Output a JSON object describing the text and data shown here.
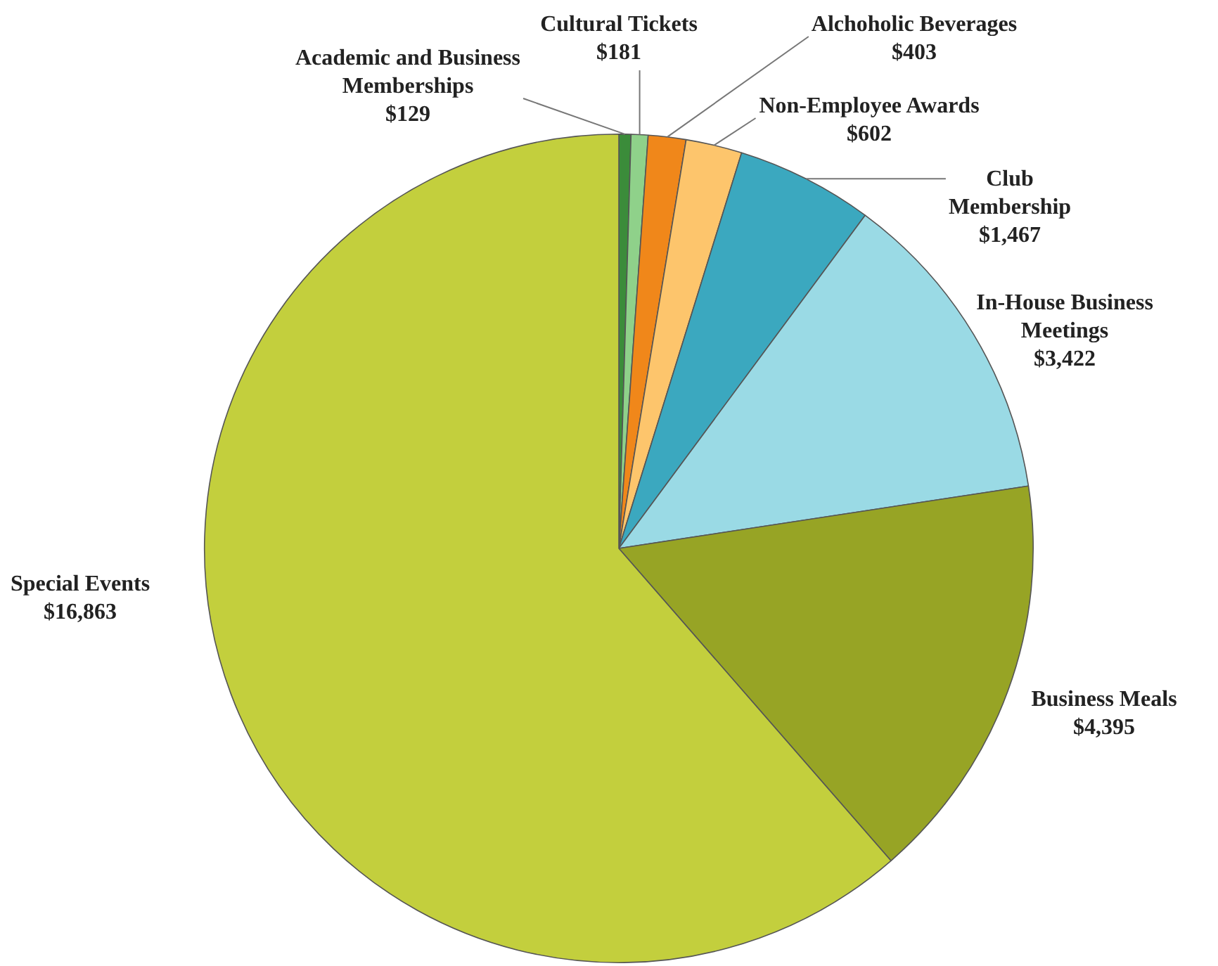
{
  "chart_data": {
    "type": "pie",
    "categories": [
      "Academic and Business Memberships",
      "Cultural Tickets",
      "Alchoholic Beverages",
      "Non-Employee Awards",
      "Club Membership",
      "In-House Business Meetings",
      "Business Meals",
      "Special Events"
    ],
    "values": [
      129,
      181,
      403,
      602,
      1467,
      3422,
      4395,
      16863
    ],
    "value_labels": [
      "$129",
      "$181",
      "$403",
      "$602",
      "$1,467",
      "$3,422",
      "$4,395",
      "$16,863"
    ],
    "colors": [
      "#3b8c3a",
      "#8fd18a",
      "#f0871a",
      "#fdc56c",
      "#3ba8bf",
      "#9adae5",
      "#97a425",
      "#c3cf3d"
    ],
    "legend": false
  }
}
